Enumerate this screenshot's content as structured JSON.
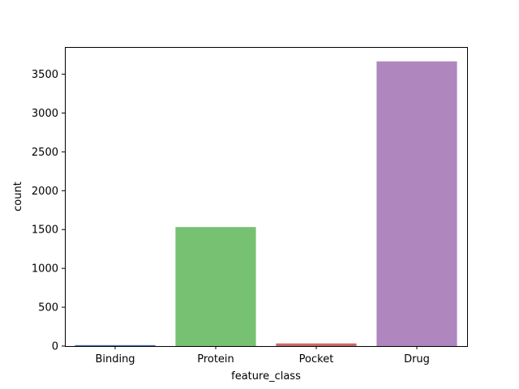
{
  "chart_data": {
    "type": "bar",
    "categories": [
      "Binding",
      "Protein",
      "Pocket",
      "Drug"
    ],
    "values": [
      12,
      1532,
      34,
      3665
    ],
    "colors": [
      "#4c72b0",
      "#77c172",
      "#cc6a6a",
      "#af87be"
    ],
    "xlabel": "feature_class",
    "ylabel": "count",
    "ylim": [
      0,
      3850
    ],
    "yticks": [
      0,
      500,
      1000,
      1500,
      2000,
      2500,
      3000,
      3500
    ],
    "grid": false,
    "legend": "none"
  }
}
